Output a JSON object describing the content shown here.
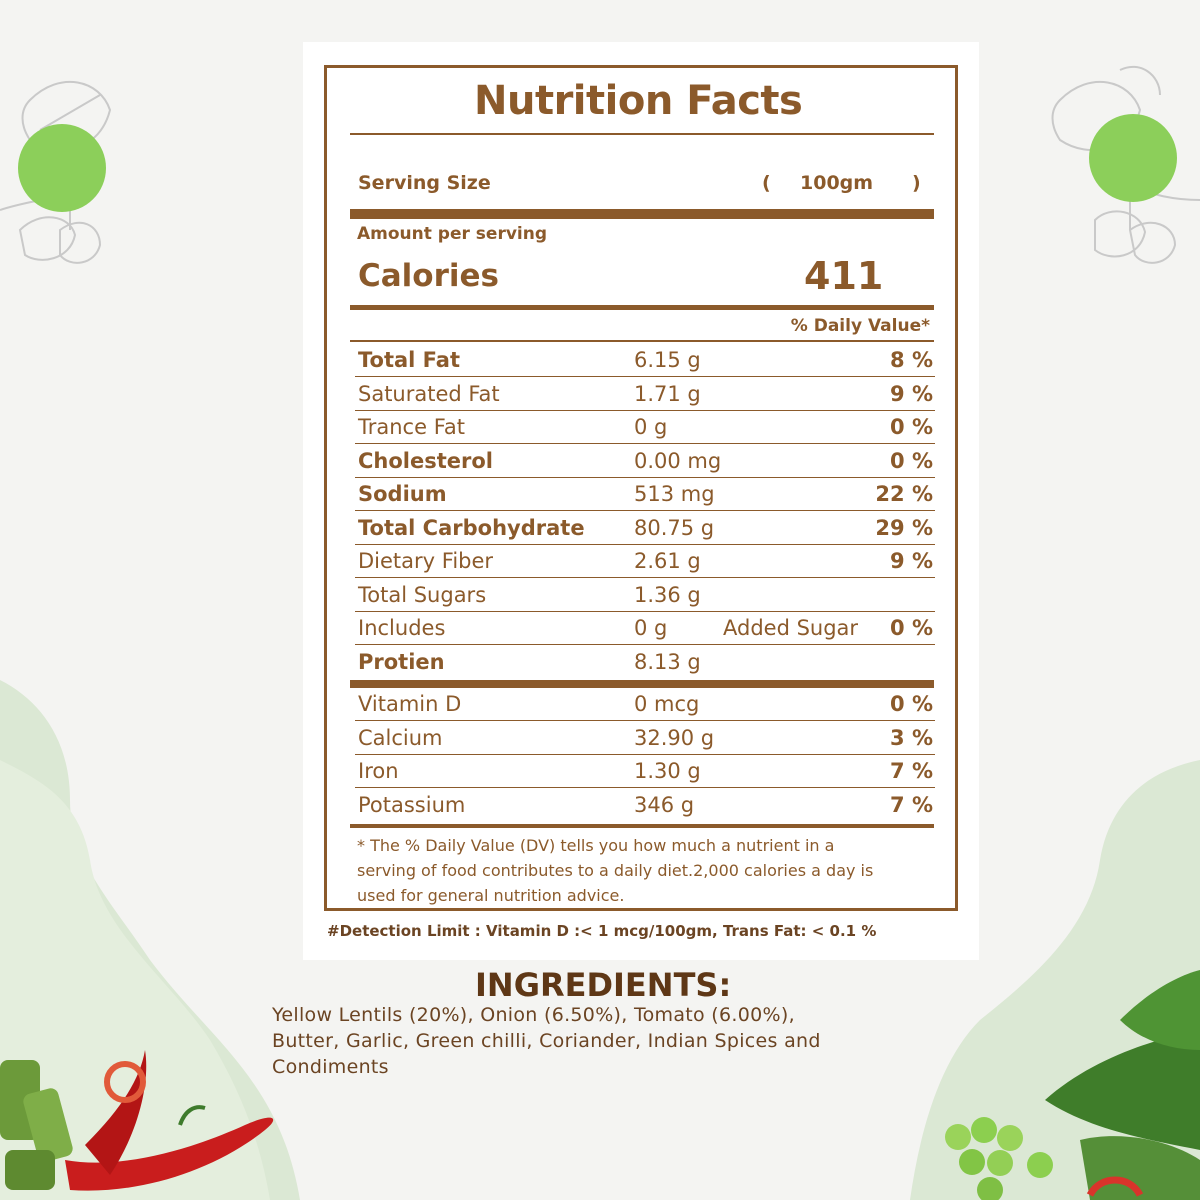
{
  "colors": {
    "label": "#8b5a2b",
    "ingredient_title": "#5e3716",
    "leaf_green": "#8ccf5a",
    "blob_green": "#dbe8d4"
  },
  "label": {
    "title": "Nutrition Facts",
    "serving_size_label": "Serving Size",
    "serving_open": "(",
    "serving_size_value": "100gm",
    "serving_close": ")",
    "amount_per_serving": "Amount per serving",
    "calories_label": "Calories",
    "calories_value": "411",
    "daily_value_header": "% Daily Value*",
    "nutrients": [
      {
        "name": "Total Fat",
        "amount": "6.15 g",
        "dv": "8 %",
        "bold": true
      },
      {
        "name": "Saturated Fat",
        "amount": "1.71 g",
        "dv": "9 %",
        "bold": false
      },
      {
        "name": "Trance Fat",
        "amount": "0 g",
        "dv": "0 %",
        "bold": false
      },
      {
        "name": "Cholesterol",
        "amount": "0.00 mg",
        "dv": "0 %",
        "bold": true
      },
      {
        "name": "Sodium",
        "amount": "513 mg",
        "dv": "22 %",
        "bold": true
      },
      {
        "name": "Total Carbohydrate",
        "amount": "80.75 g",
        "dv": "29 %",
        "bold": true
      },
      {
        "name": "Dietary Fiber",
        "amount": "2.61 g",
        "dv": "9 %",
        "bold": false
      },
      {
        "name": "Total Sugars",
        "amount": "1.36 g",
        "dv": "",
        "bold": false
      },
      {
        "name": "Includes",
        "amount": "0 g",
        "extra": "Added Sugar",
        "dv": "0 %",
        "bold": false
      },
      {
        "name": "Protien",
        "amount": "8.13 g",
        "dv": "",
        "bold": true
      }
    ],
    "vitamins": [
      {
        "name": "Vitamin D",
        "amount": "0 mcg",
        "dv": "0 %"
      },
      {
        "name": "Calcium",
        "amount": "32.90 g",
        "dv": "3 %"
      },
      {
        "name": "Iron",
        "amount": "1.30 g",
        "dv": "7 %"
      },
      {
        "name": "Potassium",
        "amount": "346 g",
        "dv": "7 %"
      }
    ],
    "footnote": [
      "* The % Daily Value (DV) tells you how much a nutrient in a",
      "serving of food contributes to a daily diet.2,000 calories a day is",
      "used for general nutrition advice."
    ],
    "detection_limit": "#Detection Limit : Vitamin D :< 1 mcg/100gm, Trans Fat: < 0.1 %"
  },
  "ingredients": {
    "title": "INGREDIENTS:",
    "lines": [
      "Yellow Lentils (20%), Onion (6.50%), Tomato (6.00%),",
      "Butter, Garlic, Green chilli, Coriander, Indian Spices and",
      "Condiments"
    ]
  }
}
